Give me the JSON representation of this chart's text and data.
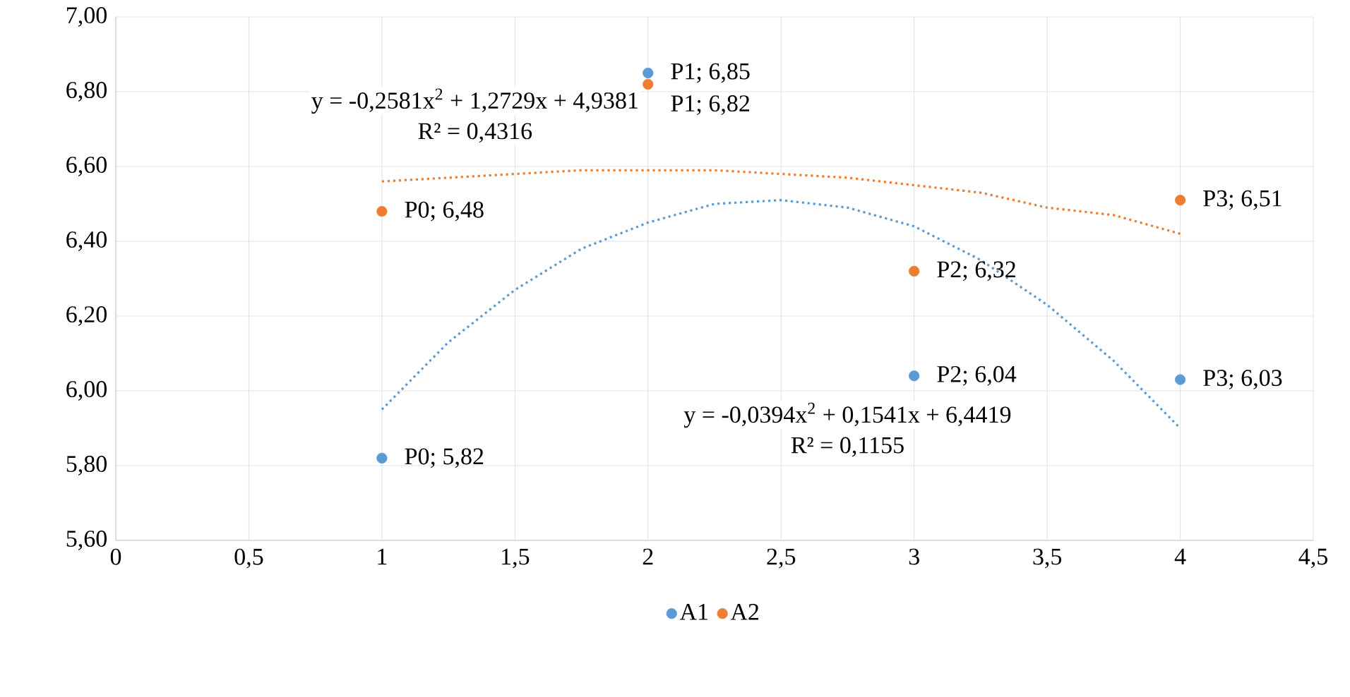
{
  "chart_data": {
    "type": "scatter",
    "x": [
      1,
      2,
      3,
      4
    ],
    "series": [
      {
        "name": "A1",
        "color": "#5b9bd5",
        "values": [
          5.82,
          6.85,
          6.04,
          6.03
        ],
        "value_labels": [
          "P0; 5,82",
          "P1; 6,85",
          "P2; 6,04",
          "P3; 6,03"
        ]
      },
      {
        "name": "A2",
        "color": "#ed7d31",
        "values": [
          6.48,
          6.82,
          6.32,
          6.51
        ],
        "value_labels": [
          "P0; 6,48",
          "P1; 6,82",
          "P2; 6,32",
          "P3; 6,51"
        ]
      },
      {
        "type": "line",
        "color": "#5b9bd5",
        "line_style": "dotted",
        "marker": "none",
        "x": [
          1,
          1.25,
          1.5,
          1.75,
          2,
          2.25,
          2.5,
          2.75,
          3,
          3.25,
          3.5,
          3.75,
          4
        ],
        "values": [
          5.95,
          6.13,
          6.27,
          6.38,
          6.45,
          6.5,
          6.51,
          6.49,
          6.44,
          6.35,
          6.23,
          6.08,
          5.9
        ]
      },
      {
        "type": "line",
        "color": "#ed7d31",
        "line_style": "dotted",
        "marker": "none",
        "x": [
          1,
          1.25,
          1.5,
          1.75,
          2,
          2.25,
          2.5,
          2.75,
          3,
          3.25,
          3.5,
          3.75,
          4
        ],
        "values": [
          6.56,
          6.57,
          6.58,
          6.59,
          6.59,
          6.59,
          6.58,
          6.57,
          6.55,
          6.53,
          6.49,
          6.47,
          6.42
        ]
      }
    ],
    "marker": "circle",
    "grid": true,
    "legend": "bottom",
    "xlim": [
      0,
      4.5
    ],
    "xticks": [
      0,
      {
        "value": 0.5,
        "label": "0,5"
      },
      1,
      {
        "value": 1.5,
        "label": "1,5"
      },
      2,
      {
        "value": 2.5,
        "label": "2,5"
      },
      3,
      {
        "value": 3.5,
        "label": "3,5"
      },
      4,
      {
        "value": 4.5,
        "label": "4,5"
      }
    ],
    "ylim": [
      5.6,
      7.0
    ],
    "yticks": [
      {
        "value": 5.6,
        "label": "5,60"
      },
      {
        "value": 5.8,
        "label": "5,80"
      },
      {
        "value": 6.0,
        "label": "6,00"
      },
      {
        "value": 6.2,
        "label": "6,20"
      },
      {
        "value": 6.4,
        "label": "6,40"
      },
      {
        "value": 6.6,
        "label": "6,60"
      },
      {
        "value": 6.8,
        "label": "6,80"
      },
      {
        "value": 7.0,
        "label": "7,00"
      }
    ],
    "annotations": [
      "y = -0,2581x$^{2}$ + 1,2729x + 4,9381",
      "R² = 0,4316",
      "y = -0,0394x$^{2}$ + 0,1541x + 6,4419",
      "R² = 0,1155"
    ]
  }
}
